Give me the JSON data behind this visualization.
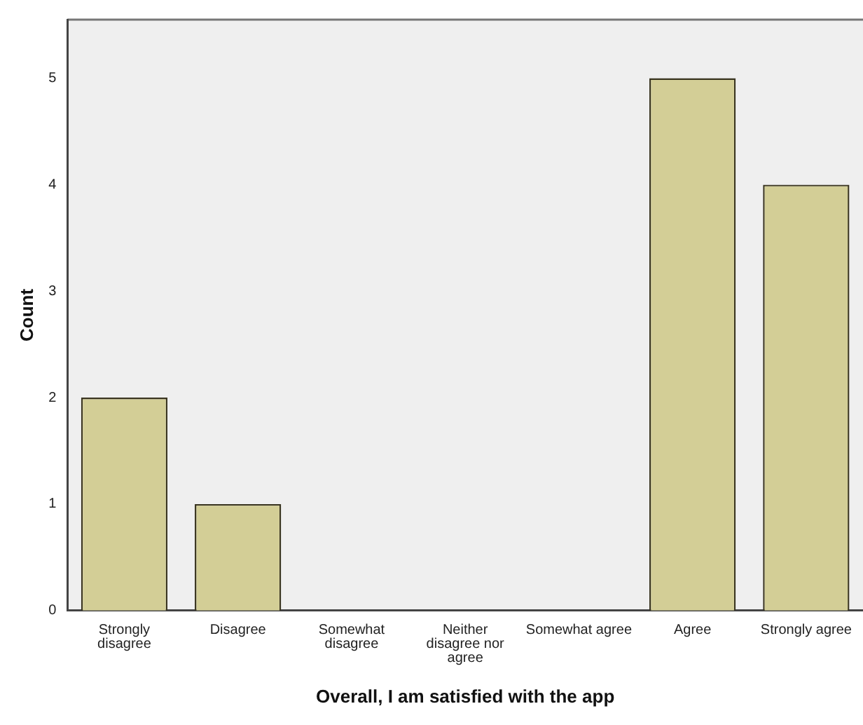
{
  "chart_data": {
    "type": "bar",
    "xlabel": "Overall, I am satisfied with the app",
    "ylabel": "Count",
    "categories": [
      "Strongly disagree",
      "Disagree",
      "Somewhat disagree",
      "Neither disagree nor agree",
      "Somewhat agree",
      "Agree",
      "Strongly agree"
    ],
    "values": [
      2,
      1,
      0,
      0,
      0,
      5,
      4
    ],
    "color": "#d3ce96",
    "ylim": [
      0,
      5.55
    ],
    "yticks": [
      0,
      1,
      2,
      3,
      4,
      5
    ],
    "grid": false,
    "legend": false
  }
}
